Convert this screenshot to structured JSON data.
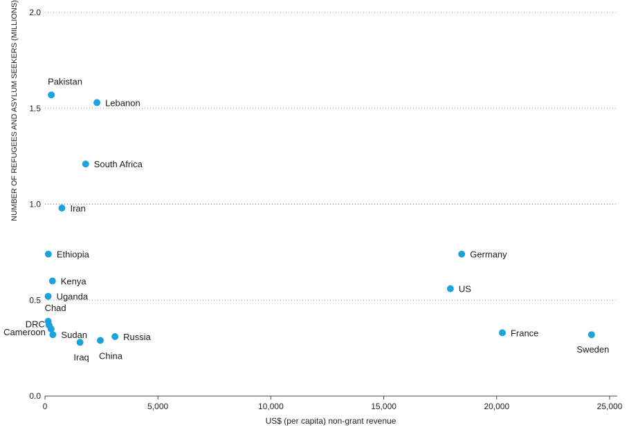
{
  "chart_data": {
    "type": "scatter",
    "xlabel": "US$ (per capita) non-grant revenue",
    "ylabel": "NUMBER OF REFUGEES AND ASYLUM SEEKERS (MILLIONS)",
    "xlim": [
      0,
      25000
    ],
    "ylim": [
      0,
      2.0
    ],
    "xticks": [
      0,
      5000,
      10000,
      15000,
      20000,
      25000
    ],
    "xtick_labels": [
      "0",
      "5,000",
      "10,000",
      "15,000",
      "20,000",
      "25,000"
    ],
    "yticks": [
      0,
      0.5,
      1.0,
      1.5,
      2.0
    ],
    "ytick_labels": [
      "0.0",
      "0.5",
      "1.0",
      "1.5",
      "2.0"
    ],
    "grid": "horizontal dotted",
    "point_color": "#1aa3dc",
    "points": [
      {
        "label": "Pakistan",
        "x": 280,
        "y": 1.57,
        "label_pos": "above-right"
      },
      {
        "label": "Lebanon",
        "x": 2300,
        "y": 1.53,
        "label_pos": "right"
      },
      {
        "label": "South Africa",
        "x": 1800,
        "y": 1.21,
        "label_pos": "right"
      },
      {
        "label": "Iran",
        "x": 750,
        "y": 0.98,
        "label_pos": "right"
      },
      {
        "label": "Ethiopia",
        "x": 150,
        "y": 0.74,
        "label_pos": "right"
      },
      {
        "label": "Kenya",
        "x": 330,
        "y": 0.6,
        "label_pos": "right"
      },
      {
        "label": "Uganda",
        "x": 140,
        "y": 0.52,
        "label_pos": "right"
      },
      {
        "label": "Chad",
        "x": 140,
        "y": 0.39,
        "label_pos": "above-right"
      },
      {
        "label": "DRC",
        "x": 180,
        "y": 0.37,
        "label_pos": "left-up"
      },
      {
        "label": "Cameroon",
        "x": 270,
        "y": 0.35,
        "label_pos": "left-down"
      },
      {
        "label": "Sudan",
        "x": 350,
        "y": 0.32,
        "label_pos": "right"
      },
      {
        "label": "Iraq",
        "x": 1550,
        "y": 0.28,
        "label_pos": "below"
      },
      {
        "label": "China",
        "x": 2450,
        "y": 0.29,
        "label_pos": "below-right"
      },
      {
        "label": "Russia",
        "x": 3100,
        "y": 0.31,
        "label_pos": "right"
      },
      {
        "label": "Germany",
        "x": 18450,
        "y": 0.74,
        "label_pos": "right"
      },
      {
        "label": "US",
        "x": 17950,
        "y": 0.56,
        "label_pos": "right"
      },
      {
        "label": "France",
        "x": 20250,
        "y": 0.33,
        "label_pos": "right"
      },
      {
        "label": "Sweden",
        "x": 24200,
        "y": 0.32,
        "label_pos": "below"
      }
    ]
  }
}
